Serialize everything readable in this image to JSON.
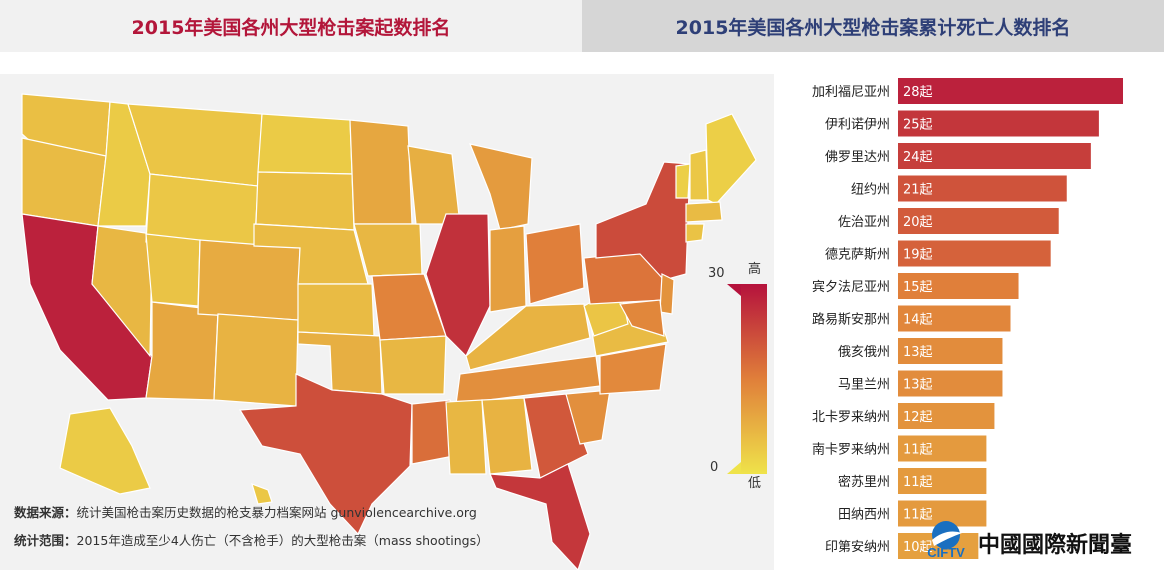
{
  "tabs": {
    "left": "2015年美国各州大型枪击案起数排名",
    "right": "2015年美国各州大型枪击案累计死亡人数排名"
  },
  "legend": {
    "max": "30",
    "min": "0",
    "high": "高",
    "low": "低"
  },
  "notes": {
    "source_key": "数据来源：",
    "source_value": "统计美国枪击案历史数据的枪支暴力档案网站 gunviolencearchive.org",
    "scope_key": "统计范围：",
    "scope_value": "2015年造成至少4人伤亡（不含枪手）的大型枪击案（mass shootings）"
  },
  "logo": {
    "mark": "CIFTV",
    "name": "中國國際新聞臺"
  },
  "colors": {
    "high": "#b5123c",
    "mid": "#e07f3a",
    "low": "#efe34a",
    "map_bg": "#f2f2f2",
    "border": "#ffffff"
  },
  "chart_data": {
    "type": "bar",
    "orientation": "horizontal",
    "title": "2015年美国各州大型枪击案起数排名",
    "categories": [
      "加利福尼亚州",
      "伊利诺伊州",
      "佛罗里达州",
      "纽约州",
      "佐治亚州",
      "德克萨斯州",
      "宾夕法尼亚州",
      "路易斯安那州",
      "俄亥俄州",
      "马里兰州",
      "北卡罗来纳州",
      "南卡罗来纳州",
      "密苏里州",
      "田纳西州",
      "印第安纳州"
    ],
    "values": [
      28,
      25,
      24,
      21,
      20,
      19,
      15,
      14,
      13,
      13,
      12,
      11,
      11,
      11,
      10
    ],
    "value_labels": [
      "28起",
      "25起",
      "24起",
      "21起",
      "20起",
      "19起",
      "15起",
      "14起",
      "13起",
      "13起",
      "12起",
      "11起",
      "11起",
      "11起",
      "10起"
    ],
    "color_scale": {
      "min": 0,
      "max": 30
    }
  }
}
